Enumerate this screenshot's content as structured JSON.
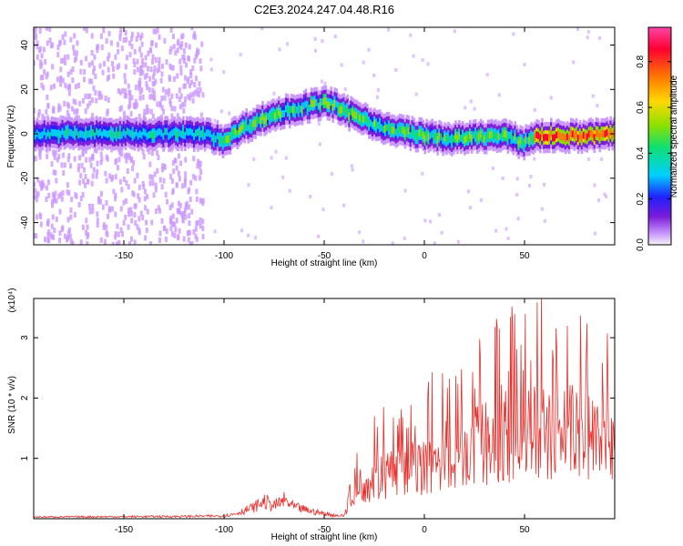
{
  "title": "C2E3.2024.247.04.48.R16",
  "colors": {
    "snr_line": "#e8302c",
    "axis": "#000000",
    "colormap": [
      "#f2f2f2",
      "#cc99ff",
      "#7a1bd9",
      "#2020ff",
      "#00d0ff",
      "#10e070",
      "#8ee000",
      "#ffd800",
      "#ff7a00",
      "#ff0030",
      "#ff44aa"
    ]
  },
  "chart_data": [
    {
      "type": "heatmap",
      "xlabel": "Height of straight line (km)",
      "ylabel": "Frequency (Hz)",
      "xlim": [
        -195,
        95
      ],
      "ylim": [
        -50,
        48
      ],
      "xticks": [
        -150,
        -100,
        -50,
        0,
        50
      ],
      "yticks": [
        -40,
        -20,
        0,
        20,
        40
      ],
      "xtick_labels": [
        "-150",
        "-100",
        "-50",
        "0",
        "50"
      ],
      "ytick_labels": [
        "-40",
        "-20",
        "0",
        "20",
        "40"
      ],
      "colorbar": {
        "label": "Normalized spectral amplitude",
        "range": [
          0,
          0.95
        ],
        "ticks": [
          0.0,
          0.2,
          0.4,
          0.6,
          0.8
        ],
        "tick_labels": [
          "0.0",
          "0.2",
          "0.4",
          "0.6",
          "0.8"
        ]
      },
      "ridge": {
        "x": [
          -195,
          -160,
          -130,
          -110,
          -100,
          -90,
          -80,
          -70,
          -60,
          -50,
          -45,
          -40,
          -30,
          -20,
          -10,
          0,
          10,
          20,
          30,
          40,
          50,
          55,
          60,
          70,
          80,
          95
        ],
        "y": [
          0,
          0,
          0,
          0,
          -3,
          3,
          7,
          10,
          12,
          14,
          13,
          10,
          7,
          2,
          1,
          -1,
          -2,
          -2,
          -1,
          -1,
          -4,
          -1,
          -1,
          -1,
          -1,
          0
        ]
      }
    },
    {
      "type": "line",
      "xlabel": "Height of straight line (km)",
      "ylabel": "SNR (10 * v/v)",
      "y_scale_label": "(x10⁴)",
      "xlim": [
        -195,
        95
      ],
      "ylim": [
        0,
        3.65
      ],
      "xticks": [
        -150,
        -100,
        -50,
        0,
        50
      ],
      "yticks": [
        1,
        2,
        3
      ],
      "xtick_labels": [
        "-150",
        "-100",
        "-50",
        "0",
        "50"
      ],
      "ytick_labels": [
        "1",
        "2",
        "3"
      ],
      "envelope": {
        "x": [
          -195,
          -120,
          -100,
          -95,
          -85,
          -80,
          -75,
          -70,
          -65,
          -55,
          -45,
          -40,
          -38,
          -35,
          -30,
          -20,
          -10,
          0,
          10,
          20,
          30,
          40,
          50,
          60,
          70,
          80,
          95
        ],
        "y": [
          0.03,
          0.04,
          0.05,
          0.08,
          0.2,
          0.3,
          0.22,
          0.32,
          0.2,
          0.12,
          0.06,
          0.05,
          0.4,
          0.6,
          0.75,
          0.9,
          1.0,
          1.1,
          1.3,
          1.4,
          1.55,
          1.7,
          1.75,
          1.8,
          1.8,
          1.85,
          1.8
        ]
      }
    }
  ]
}
